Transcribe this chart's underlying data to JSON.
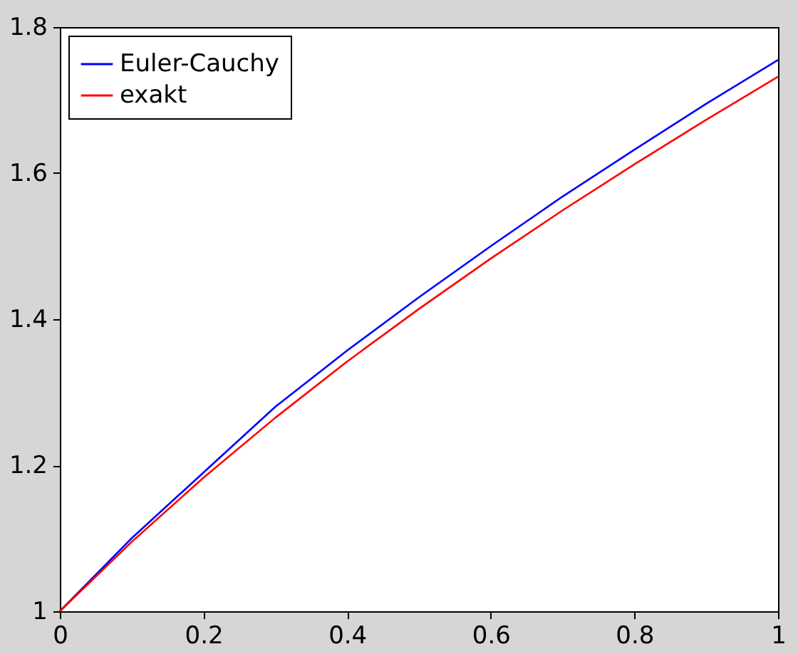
{
  "chart_data": {
    "type": "line",
    "x": [
      0,
      0.1,
      0.2,
      0.3,
      0.4,
      0.5,
      0.6,
      0.7,
      0.8,
      0.9,
      1.0
    ],
    "series": [
      {
        "name": "Euler-Cauchy",
        "color": "#0000ff",
        "values": [
          1,
          1.1,
          1.19,
          1.28,
          1.357,
          1.43,
          1.5,
          1.568,
          1.632,
          1.695,
          1.755
        ]
      },
      {
        "name": "exakt",
        "color": "#ff0000",
        "values": [
          1,
          1.095,
          1.183,
          1.265,
          1.342,
          1.414,
          1.483,
          1.549,
          1.612,
          1.673,
          1.732
        ]
      }
    ],
    "xlim": [
      0,
      1
    ],
    "xticks": [
      0,
      0.2,
      0.4,
      0.6,
      0.8,
      1
    ],
    "ylim": [
      1,
      1.8
    ],
    "yticks": [
      1,
      1.2,
      1.4,
      1.6,
      1.8
    ],
    "grid": false,
    "legend": "top left",
    "marker": "none",
    "line_style": "solid"
  }
}
